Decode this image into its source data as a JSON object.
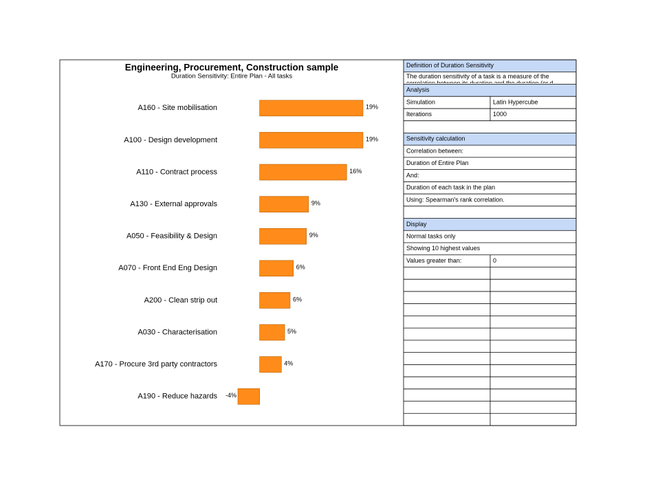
{
  "chart_data": {
    "type": "bar",
    "orientation": "horizontal",
    "title": "Engineering, Procurement, Construction sample",
    "subtitle": "Duration Sensitivity: Entire Plan - All tasks",
    "categories": [
      "A160 - Site mobilisation",
      "A100 - Design development",
      "A110 - Contract process",
      "A130 - External approvals",
      "A050 - Feasibility & Design",
      "A070 - Front End Eng Design",
      "A200 - Clean strip out",
      "A030 - Characterisation",
      "A170 - Procure 3rd party contractors",
      "A190 - Reduce hazards"
    ],
    "values": [
      19,
      19,
      16,
      9,
      8.6,
      6.2,
      5.6,
      4.6,
      4,
      -4
    ],
    "value_labels": [
      "19%",
      "19%",
      "16%",
      "9%",
      "9%",
      "6%",
      "6%",
      "5%",
      "4%",
      "-4%"
    ],
    "color": "#ff8c1a"
  },
  "panel": {
    "definition": {
      "title": "Definition of Duration Sensitivity",
      "text": "The duration sensitivity of a task is a measure of the correlation between its duration and the duration (or d"
    },
    "analysis": {
      "title": "Analysis",
      "rows": [
        [
          "Simulation",
          "Latin Hypercube"
        ],
        [
          "Iterations",
          1000
        ]
      ]
    },
    "sensitivity": {
      "title": "Sensitivity calculation",
      "lines": [
        "Correlation between:",
        "Duration of Entire Plan",
        "And:",
        "Duration of each task in the plan",
        "Using: Spearman's rank correlation."
      ]
    },
    "display": {
      "title": "Display",
      "lines": [
        "Normal tasks only",
        "Showing 10 highest values"
      ],
      "rows": [
        [
          "Values greater than:",
          0
        ]
      ]
    },
    "header_color": "#c6daf8"
  }
}
